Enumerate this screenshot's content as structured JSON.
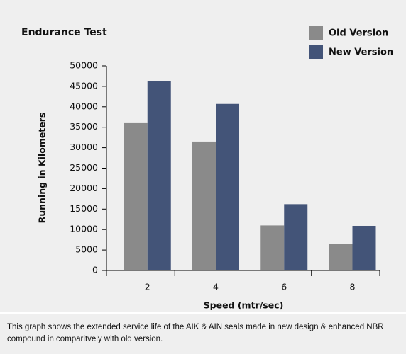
{
  "chart_data": {
    "type": "bar",
    "title": "Endurance Test",
    "x_label": "Speed (mtr/sec)",
    "y_label": "Running in Kilometers",
    "categories": [
      "2",
      "4",
      "6",
      "8"
    ],
    "series": [
      {
        "name": "Old Version",
        "color": "#8a8a8a",
        "values": [
          36000,
          31500,
          11000,
          6400
        ]
      },
      {
        "name": "New Version",
        "color": "#435478",
        "values": [
          46200,
          40700,
          16200,
          10900
        ]
      }
    ],
    "ylim": [
      0,
      50000
    ],
    "yticks": [
      0,
      5000,
      10000,
      15000,
      20000,
      25000,
      30000,
      35000,
      40000,
      45000,
      50000
    ],
    "legend": "top-right"
  },
  "caption": "This graph shows the extended service life of the AIK & AIN seals made in new design & enhanced NBR compound in comparitvely with old version."
}
